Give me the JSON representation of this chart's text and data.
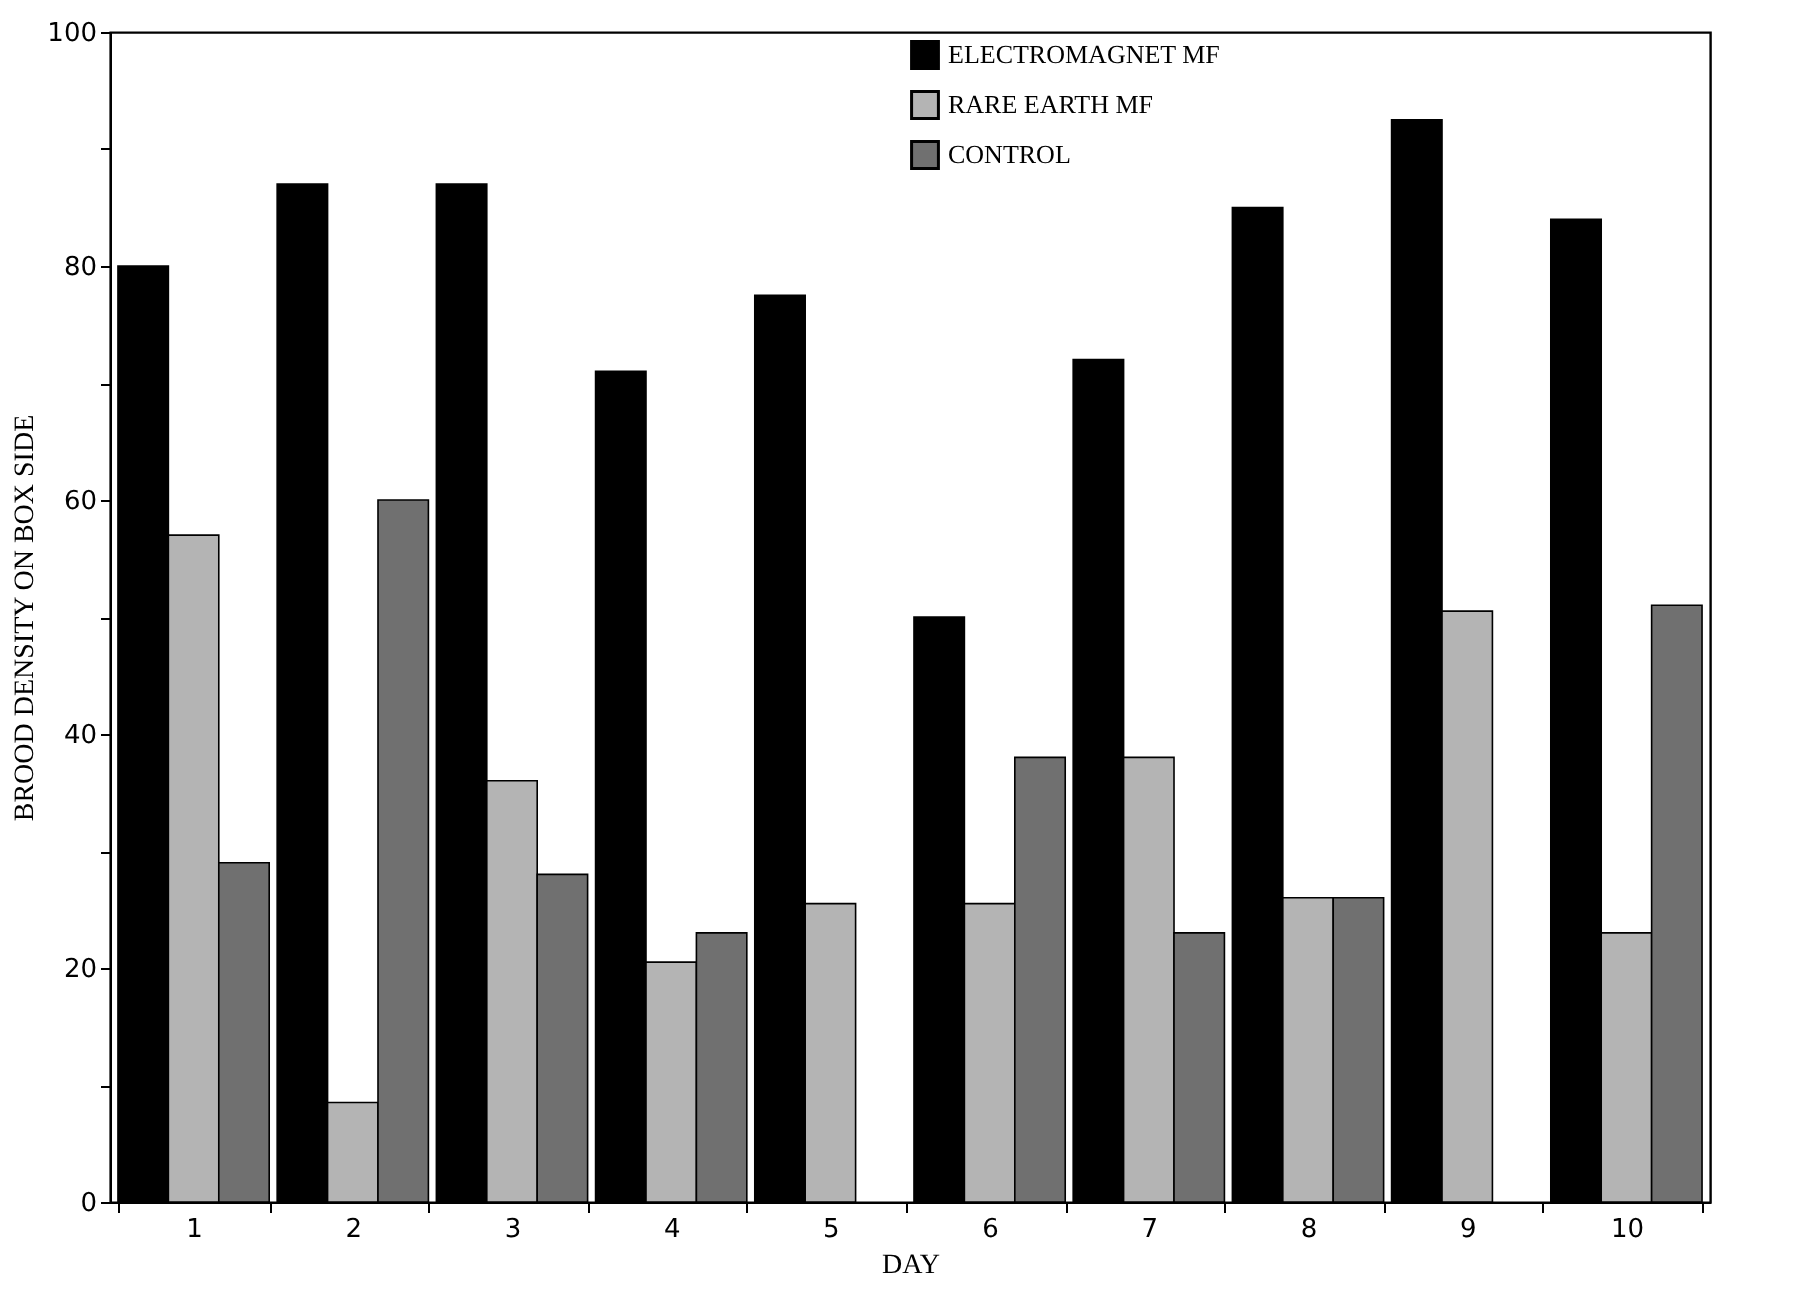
{
  "chart_data": {
    "type": "bar",
    "xlabel": "DAY",
    "ylabel": "BROOD DENSITY ON BOX SIDE",
    "categories": [
      "1",
      "2",
      "3",
      "4",
      "5",
      "6",
      "7",
      "8",
      "9",
      "10"
    ],
    "series": [
      {
        "name": "ELECTROMAGNET MF",
        "color": "#000000",
        "values": [
          80,
          87,
          87,
          71,
          77.5,
          50,
          72,
          85,
          92.5,
          84
        ]
      },
      {
        "name": "RARE EARTH MF",
        "color": "#b4b4b4",
        "values": [
          57,
          8.5,
          36,
          20.5,
          25.5,
          25.5,
          38,
          26,
          50.5,
          23
        ]
      },
      {
        "name": "CONTROL",
        "color": "#707070",
        "values": [
          29,
          60,
          28,
          23,
          null,
          38,
          23,
          26,
          null,
          51
        ]
      }
    ],
    "ylim": [
      0,
      100
    ],
    "yticks": [
      0,
      {
        "value": 10,
        "label": null
      },
      20,
      {
        "value": 30,
        "label": null
      },
      40,
      {
        "value": 50,
        "label": null
      },
      60,
      {
        "value": 70,
        "label": null
      },
      80,
      {
        "value": 90,
        "label": null
      },
      100
    ],
    "grid": false,
    "legend": "top right"
  }
}
